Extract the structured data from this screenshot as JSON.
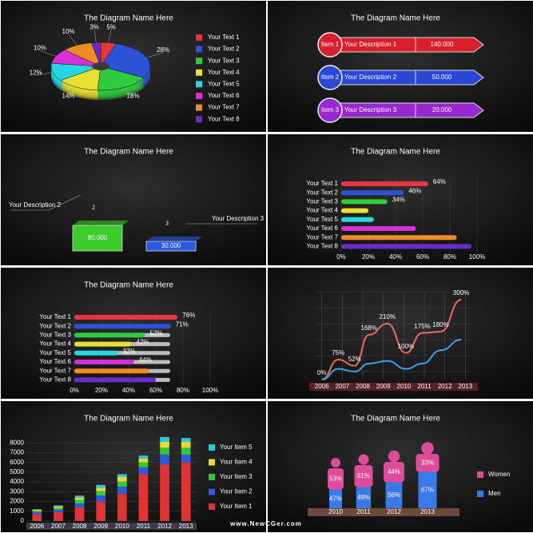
{
  "chart_data": [
    {
      "type": "pie",
      "title": "The Diagram Name Here",
      "categories": [
        "Your Text 1",
        "Your Text 2",
        "Your Text 3",
        "Your Text 4",
        "Your Text 5",
        "Your Text 6",
        "Your Text 7",
        "Your Text 8"
      ],
      "values": [
        5,
        28,
        18,
        14,
        12,
        10,
        10,
        3
      ],
      "value_labels": [
        "5%",
        "28%",
        "18%",
        "14%",
        "12%",
        "10%",
        "10%",
        "3%"
      ],
      "colors": [
        "#e8343c",
        "#2c52d8",
        "#2ecc3e",
        "#e8e030",
        "#26d6e0",
        "#d830d8",
        "#f08a24",
        "#6a2cc8"
      ]
    },
    {
      "type": "arrow-list",
      "title": "The Diagram Name Here",
      "categories": [
        "Item 1",
        "Item 2",
        "Item 3"
      ],
      "descriptions": [
        "Your Description 1",
        "Your Description 2",
        "Your Description 3"
      ],
      "values": [
        140000,
        50000,
        20000
      ],
      "value_labels": [
        "140.000",
        "50.000",
        "20.000"
      ],
      "colors": [
        "#d8202c",
        "#2a48d8",
        "#9a28d0"
      ]
    },
    {
      "type": "box-list",
      "title": "The Diagram Name Here",
      "categories": [
        "2",
        "3"
      ],
      "descriptions": [
        "Your Description 2",
        "Your Description 3"
      ],
      "values": [
        80000,
        30000
      ],
      "value_labels": [
        "80.000",
        "30.000"
      ],
      "colors": [
        "#3ccc2c",
        "#2c5ae0"
      ]
    },
    {
      "type": "hbar",
      "title": "The Diagram Name Here",
      "categories": [
        "Your Text 1",
        "Your Text 2",
        "Your Text 3",
        "Your Text 4",
        "Your Text 5",
        "Your Text 6",
        "Your Text 7",
        "Your Text 8"
      ],
      "values": [
        64,
        46,
        34,
        20,
        24,
        55,
        85,
        96
      ],
      "value_labels": [
        "64%",
        "46%",
        "34%",
        null,
        null,
        null,
        null,
        null
      ],
      "colors": [
        "#e8343c",
        "#2c52d8",
        "#2ecc3e",
        "#e8e030",
        "#26d6e0",
        "#d830d8",
        "#f08a24",
        "#6a2cc8"
      ],
      "xlim": [
        0,
        100
      ],
      "xticks": [
        {
          "value": 0,
          "label": "0%"
        },
        {
          "value": 20,
          "label": "20%"
        },
        {
          "value": 40,
          "label": "40%"
        },
        {
          "value": 60,
          "label": "60%"
        },
        {
          "value": 80,
          "label": "80%"
        },
        {
          "value": 100,
          "label": "100%"
        }
      ]
    },
    {
      "type": "hbar",
      "title": "The Diagram Name Here",
      "categories": [
        "Your Text 1",
        "Your Text 2",
        "Your Text 3",
        "Your Text 4",
        "Your Text 5",
        "Your Text 6",
        "Your Text 7",
        "Your Text 8"
      ],
      "values": [
        76,
        71,
        52,
        42,
        32,
        44,
        55,
        60
      ],
      "value_labels": [
        "76%",
        "71%",
        "52%",
        "42%",
        "32%",
        "44%",
        null,
        null
      ],
      "colors": [
        "#e8343c",
        "#2c52d8",
        "#2ecc3e",
        "#e8e030",
        "#26d6e0",
        "#d830d8",
        "#f08a24",
        "#6a2cc8"
      ],
      "track": true,
      "xlim": [
        0,
        100
      ],
      "xticks": [
        {
          "value": 0,
          "label": "0%"
        },
        {
          "value": 20,
          "label": "20%"
        },
        {
          "value": 40,
          "label": "40%"
        },
        {
          "value": 60,
          "label": "60%"
        },
        {
          "value": 80,
          "label": "80%"
        },
        {
          "value": 100,
          "label": "100%"
        }
      ]
    },
    {
      "type": "line",
      "x": [
        2006,
        2006.8,
        2007.6,
        2008.3,
        2009.2,
        2010.1,
        2010.9,
        2011.8,
        2012.8
      ],
      "series": [
        {
          "color": "#f06a5a",
          "values": [
            0,
            75,
            52,
            168,
            210,
            100,
            175,
            180,
            300
          ],
          "value_labels": [
            "0%",
            "75%",
            "52%",
            "168%",
            "210%",
            "100%",
            "175%",
            "180%",
            "300%"
          ]
        },
        {
          "color": "#3aa0f0",
          "values": [
            0,
            40,
            30,
            60,
            70,
            40,
            60,
            110,
            150
          ]
        }
      ],
      "xlim": [
        2005.7,
        2013.3
      ],
      "ylim": [
        0,
        330
      ],
      "xticks": [
        2006,
        2007,
        2008,
        2009,
        2010,
        2011,
        2012,
        2013
      ],
      "grid": true
    },
    {
      "type": "stacked-bar",
      "title": "The Diagram Name Here",
      "categories": [
        "2006",
        "2007",
        "2008",
        "2009",
        "2010",
        "2011",
        "2012",
        "2013"
      ],
      "series": [
        {
          "name": "Your Item 1",
          "color": "#e03434",
          "values": [
            700,
            900,
            1400,
            2000,
            2800,
            4800,
            5800,
            6000
          ]
        },
        {
          "name": "Your Item 2",
          "color": "#2c5ae0",
          "values": [
            200,
            250,
            400,
            600,
            700,
            700,
            1000,
            800
          ]
        },
        {
          "name": "Your Item 3",
          "color": "#34c834",
          "values": [
            150,
            200,
            350,
            450,
            550,
            500,
            700,
            700
          ]
        },
        {
          "name": "Your Item 4",
          "color": "#e8d830",
          "values": [
            100,
            150,
            250,
            350,
            450,
            400,
            600,
            600
          ]
        },
        {
          "name": "Your Item 5",
          "color": "#2cc8d8",
          "values": [
            50,
            100,
            200,
            300,
            300,
            300,
            500,
            400
          ]
        }
      ],
      "ylim": [
        0,
        9000
      ],
      "yticks": [
        0,
        1000,
        2000,
        3000,
        4000,
        5000,
        6000,
        7000,
        8000
      ],
      "grid": true
    },
    {
      "type": "pictogram",
      "title": "The Diagram Name Here",
      "categories": [
        "2010",
        "2011",
        "2012",
        "2013"
      ],
      "series": [
        {
          "name": "Women",
          "color": "#e04a9a",
          "values": [
            53,
            51,
            44,
            33
          ],
          "value_labels": [
            "53%",
            "51%",
            "44%",
            "33%"
          ]
        },
        {
          "name": "Men",
          "color": "#3a7ae8",
          "values": [
            47,
            49,
            56,
            67
          ],
          "value_labels": [
            "47%",
            "49%",
            "56%",
            "67%"
          ]
        }
      ]
    }
  ],
  "footer": "www.NewCGer.com"
}
